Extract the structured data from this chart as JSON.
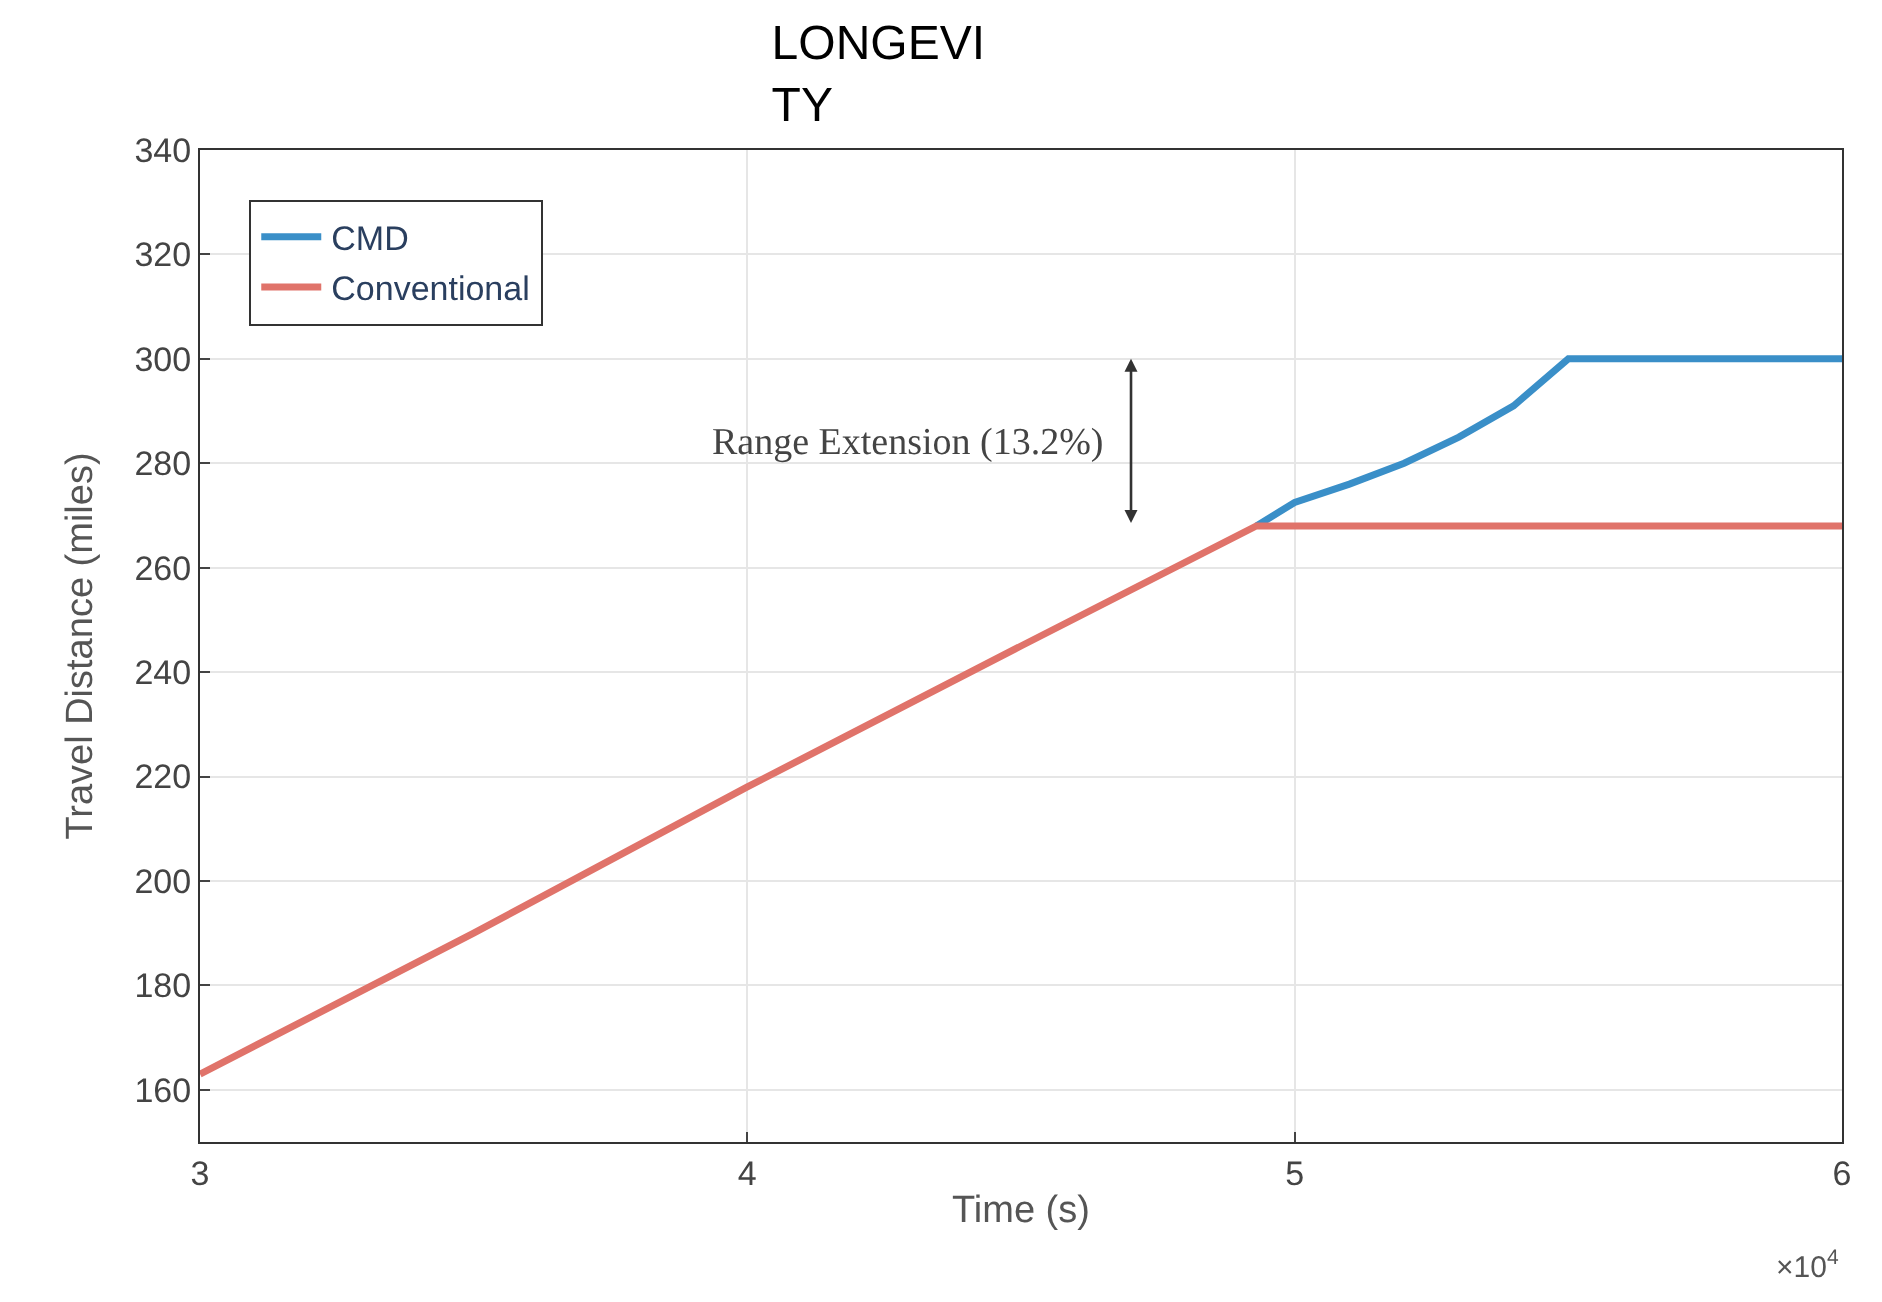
{
  "chart_data": {
    "type": "line",
    "title": "LONGEVI\nTY",
    "xlabel": "Time (s)",
    "ylabel": "Travel Distance (miles)",
    "series": [
      {
        "name": "CMD",
        "color": "#3a8fc8",
        "x": [
          4.93,
          5.0,
          5.1,
          5.2,
          5.3,
          5.4,
          5.5,
          6.0
        ],
        "values": [
          268,
          272.5,
          276,
          280,
          285,
          291,
          300,
          300
        ]
      },
      {
        "name": "Conventional",
        "color": "#e0736a",
        "x": [
          3.0,
          3.5,
          4.0,
          4.5,
          4.93,
          6.0
        ],
        "values": [
          163,
          190,
          218,
          245,
          268,
          268
        ]
      }
    ],
    "xlim": [
      3,
      6
    ],
    "xticks": [
      3,
      4,
      5,
      6
    ],
    "ylim": [
      150,
      340
    ],
    "yticks": [
      160,
      180,
      200,
      220,
      240,
      260,
      280,
      300,
      320,
      340
    ],
    "annotations": [
      "Range Extension (13.2%)",
      "×10$^{4}$"
    ],
    "grid": true,
    "legend": "top left",
    "marker": "none",
    "line_style": "solid"
  }
}
